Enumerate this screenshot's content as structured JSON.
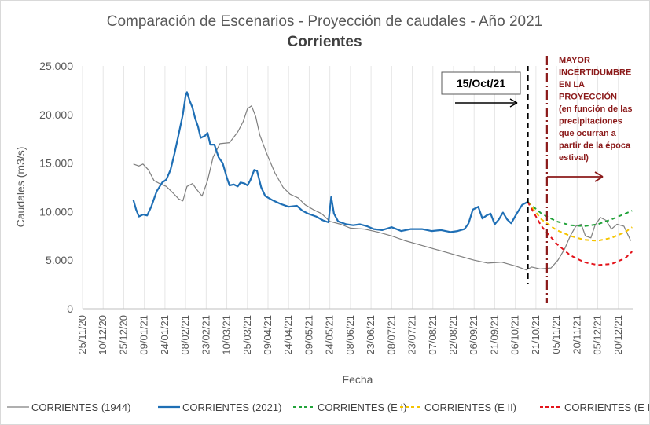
{
  "chart_data": {
    "type": "line",
    "title": "Comparación de Escenarios - Proyección de caudales - Año 2021",
    "subtitle": "Corrientes",
    "xlabel": "Fecha",
    "ylabel": "Caudales (m3/s)",
    "ylim": [
      0,
      25000
    ],
    "y_ticks": [
      "0",
      "5.000",
      "10.000",
      "15.000",
      "20.000",
      "25.000"
    ],
    "x_range": [
      "2020-11-25",
      "2021-01-01"
    ],
    "x_ticks": [
      "25/11/20",
      "10/12/20",
      "25/12/20",
      "09/01/21",
      "24/01/21",
      "08/02/21",
      "23/02/21",
      "10/03/21",
      "25/03/21",
      "09/04/21",
      "24/04/21",
      "09/05/21",
      "24/05/21",
      "08/06/21",
      "23/06/21",
      "08/07/21",
      "23/07/21",
      "07/08/21",
      "22/08/21",
      "06/09/21",
      "21/09/21",
      "06/10/21",
      "21/10/21",
      "05/11/21",
      "20/11/21",
      "05/12/21",
      "20/12/21"
    ],
    "grid": "vertical",
    "legend_position": "bottom",
    "colors": {
      "c1944": "#7f7f7f",
      "c2021": "#1f6fb5",
      "e1": "#22a33a",
      "e2": "#f5c400",
      "e3": "#e3141b",
      "annotation": "#8b1a1a",
      "marker": "#000000"
    },
    "series": [
      {
        "name": "CORRIENTES (1944)",
        "key": "c1944",
        "style": "solid",
        "points": [
          [
            "2021-01-01",
            14900
          ],
          [
            "2021-01-05",
            14700
          ],
          [
            "2021-01-08",
            14900
          ],
          [
            "2021-01-12",
            14300
          ],
          [
            "2021-01-16",
            13200
          ],
          [
            "2021-01-20",
            12900
          ],
          [
            "2021-01-25",
            12600
          ],
          [
            "2021-01-30",
            11900
          ],
          [
            "2021-02-03",
            11300
          ],
          [
            "2021-02-06",
            11100
          ],
          [
            "2021-02-09",
            12600
          ],
          [
            "2021-02-13",
            12900
          ],
          [
            "2021-02-16",
            12300
          ],
          [
            "2021-02-20",
            11600
          ],
          [
            "2021-02-24",
            13200
          ],
          [
            "2021-02-28",
            15600
          ],
          [
            "2021-03-05",
            17000
          ],
          [
            "2021-03-12",
            17100
          ],
          [
            "2021-03-18",
            18200
          ],
          [
            "2021-03-22",
            19300
          ],
          [
            "2021-03-25",
            20600
          ],
          [
            "2021-03-28",
            20900
          ],
          [
            "2021-03-31",
            19800
          ],
          [
            "2021-04-03",
            17900
          ],
          [
            "2021-04-08",
            16000
          ],
          [
            "2021-04-14",
            14000
          ],
          [
            "2021-04-20",
            12500
          ],
          [
            "2021-04-25",
            11800
          ],
          [
            "2021-05-01",
            11400
          ],
          [
            "2021-05-06",
            10700
          ],
          [
            "2021-05-12",
            10200
          ],
          [
            "2021-05-18",
            9800
          ],
          [
            "2021-05-24",
            9000
          ],
          [
            "2021-06-01",
            8700
          ],
          [
            "2021-06-08",
            8300
          ],
          [
            "2021-06-18",
            8200
          ],
          [
            "2021-06-28",
            7900
          ],
          [
            "2021-07-08",
            7500
          ],
          [
            "2021-07-18",
            7000
          ],
          [
            "2021-07-28",
            6600
          ],
          [
            "2021-08-07",
            6200
          ],
          [
            "2021-08-17",
            5800
          ],
          [
            "2021-08-27",
            5400
          ],
          [
            "2021-09-06",
            5000
          ],
          [
            "2021-09-16",
            4700
          ],
          [
            "2021-09-26",
            4800
          ],
          [
            "2021-10-06",
            4400
          ],
          [
            "2021-10-14",
            4000
          ],
          [
            "2021-10-18",
            4300
          ],
          [
            "2021-10-24",
            4100
          ],
          [
            "2021-11-01",
            4200
          ],
          [
            "2021-11-06",
            5000
          ],
          [
            "2021-11-11",
            6200
          ],
          [
            "2021-11-15",
            7500
          ],
          [
            "2021-11-19",
            8500
          ],
          [
            "2021-11-23",
            8700
          ],
          [
            "2021-11-26",
            7500
          ],
          [
            "2021-11-30",
            7300
          ],
          [
            "2021-12-03",
            8600
          ],
          [
            "2021-12-07",
            9400
          ],
          [
            "2021-12-11",
            9100
          ],
          [
            "2021-12-15",
            8200
          ],
          [
            "2021-12-19",
            8700
          ],
          [
            "2021-12-24",
            8500
          ],
          [
            "2021-12-29",
            7000
          ]
        ]
      },
      {
        "name": "CORRIENTES (2021)",
        "key": "c2021",
        "style": "solid",
        "points": [
          [
            "2021-01-01",
            11200
          ],
          [
            "2021-01-03",
            10200
          ],
          [
            "2021-01-05",
            9500
          ],
          [
            "2021-01-08",
            9700
          ],
          [
            "2021-01-11",
            9600
          ],
          [
            "2021-01-14",
            10500
          ],
          [
            "2021-01-18",
            12100
          ],
          [
            "2021-01-22",
            13000
          ],
          [
            "2021-01-25",
            13300
          ],
          [
            "2021-01-28",
            14300
          ],
          [
            "2021-01-31",
            16000
          ],
          [
            "2021-02-03",
            18000
          ],
          [
            "2021-02-06",
            20000
          ],
          [
            "2021-02-08",
            21900
          ],
          [
            "2021-02-09",
            22300
          ],
          [
            "2021-02-11",
            21400
          ],
          [
            "2021-02-13",
            20700
          ],
          [
            "2021-02-15",
            19600
          ],
          [
            "2021-02-17",
            18800
          ],
          [
            "2021-02-19",
            17600
          ],
          [
            "2021-02-22",
            17800
          ],
          [
            "2021-02-24",
            18100
          ],
          [
            "2021-02-26",
            16900
          ],
          [
            "2021-03-01",
            16900
          ],
          [
            "2021-03-04",
            15600
          ],
          [
            "2021-03-07",
            15000
          ],
          [
            "2021-03-10",
            13500
          ],
          [
            "2021-03-12",
            12700
          ],
          [
            "2021-03-15",
            12800
          ],
          [
            "2021-03-18",
            12600
          ],
          [
            "2021-03-20",
            13000
          ],
          [
            "2021-03-23",
            12900
          ],
          [
            "2021-03-25",
            12700
          ],
          [
            "2021-03-27",
            13200
          ],
          [
            "2021-03-30",
            14300
          ],
          [
            "2021-04-01",
            14200
          ],
          [
            "2021-04-04",
            12500
          ],
          [
            "2021-04-07",
            11600
          ],
          [
            "2021-04-12",
            11200
          ],
          [
            "2021-04-18",
            10800
          ],
          [
            "2021-04-24",
            10500
          ],
          [
            "2021-04-30",
            10600
          ],
          [
            "2021-05-04",
            10100
          ],
          [
            "2021-05-08",
            9800
          ],
          [
            "2021-05-14",
            9500
          ],
          [
            "2021-05-19",
            9100
          ],
          [
            "2021-05-23",
            8900
          ],
          [
            "2021-05-25",
            11500
          ],
          [
            "2021-05-27",
            9800
          ],
          [
            "2021-05-30",
            9000
          ],
          [
            "2021-06-05",
            8700
          ],
          [
            "2021-06-10",
            8600
          ],
          [
            "2021-06-15",
            8700
          ],
          [
            "2021-06-20",
            8500
          ],
          [
            "2021-06-25",
            8200
          ],
          [
            "2021-07-01",
            8100
          ],
          [
            "2021-07-08",
            8400
          ],
          [
            "2021-07-15",
            8000
          ],
          [
            "2021-07-22",
            8200
          ],
          [
            "2021-07-30",
            8200
          ],
          [
            "2021-08-06",
            8000
          ],
          [
            "2021-08-13",
            8100
          ],
          [
            "2021-08-20",
            7900
          ],
          [
            "2021-08-25",
            8000
          ],
          [
            "2021-08-30",
            8200
          ],
          [
            "2021-09-02",
            8800
          ],
          [
            "2021-09-05",
            10200
          ],
          [
            "2021-09-09",
            10500
          ],
          [
            "2021-09-12",
            9300
          ],
          [
            "2021-09-15",
            9600
          ],
          [
            "2021-09-18",
            9800
          ],
          [
            "2021-09-21",
            8700
          ],
          [
            "2021-09-24",
            9200
          ],
          [
            "2021-09-27",
            9900
          ],
          [
            "2021-09-30",
            9200
          ],
          [
            "2021-10-03",
            8800
          ],
          [
            "2021-10-07",
            9800
          ],
          [
            "2021-10-11",
            10700
          ],
          [
            "2021-10-15",
            11000
          ]
        ]
      },
      {
        "name": "CORRIENTES (E I)",
        "key": "e1",
        "style": "dashed",
        "points": [
          [
            "2021-10-15",
            11000
          ],
          [
            "2021-10-25",
            9800
          ],
          [
            "2021-11-05",
            9000
          ],
          [
            "2021-11-15",
            8600
          ],
          [
            "2021-11-25",
            8500
          ],
          [
            "2021-12-05",
            8700
          ],
          [
            "2021-12-15",
            9200
          ],
          [
            "2021-12-25",
            9800
          ],
          [
            "2021-12-30",
            10100
          ]
        ]
      },
      {
        "name": "CORRIENTES (E II)",
        "key": "e2",
        "style": "dashed",
        "points": [
          [
            "2021-10-15",
            11000
          ],
          [
            "2021-10-25",
            9200
          ],
          [
            "2021-11-05",
            8100
          ],
          [
            "2021-11-15",
            7500
          ],
          [
            "2021-11-25",
            7100
          ],
          [
            "2021-12-05",
            7000
          ],
          [
            "2021-12-15",
            7300
          ],
          [
            "2021-12-25",
            7900
          ],
          [
            "2021-12-30",
            8400
          ]
        ]
      },
      {
        "name": "CORRIENTES (E III)",
        "key": "e3",
        "style": "dashed",
        "points": [
          [
            "2021-10-15",
            11000
          ],
          [
            "2021-10-25",
            8500
          ],
          [
            "2021-11-05",
            6700
          ],
          [
            "2021-11-15",
            5500
          ],
          [
            "2021-11-25",
            4800
          ],
          [
            "2021-12-05",
            4500
          ],
          [
            "2021-12-15",
            4600
          ],
          [
            "2021-12-25",
            5200
          ],
          [
            "2021-12-30",
            5900
          ]
        ]
      }
    ],
    "annotations": {
      "date_marker": {
        "label": "15/Oct/21",
        "date": "2021-10-15"
      },
      "uncertainty_line_date": "2021-10-29",
      "uncertainty_text": [
        "MAYOR",
        "INCERTIDUMBRE",
        "EN LA",
        "PROYECCIÓN",
        "(en función de las",
        "precipitaciones",
        "que ocurran a",
        "partir de la época",
        "estival)"
      ]
    }
  }
}
